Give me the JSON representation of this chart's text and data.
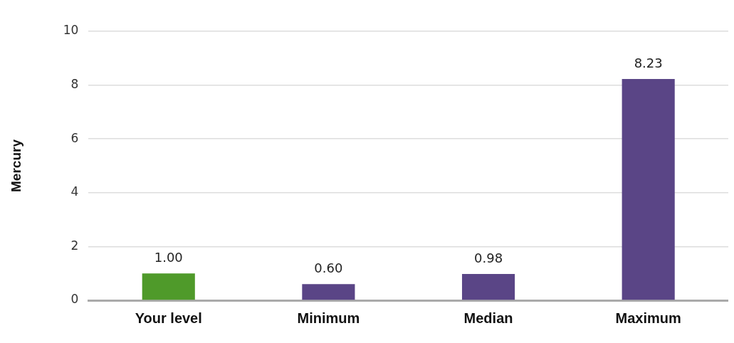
{
  "chart_data": {
    "type": "bar",
    "ylabel": "Mercury",
    "categories": [
      "Your level",
      "Minimum",
      "Median",
      "Maximum"
    ],
    "values": [
      1.0,
      0.6,
      0.98,
      8.23
    ],
    "colors": [
      "#4f9a2a",
      "#5a4586",
      "#5a4586",
      "#5a4586"
    ],
    "value_labels": [
      "1.00",
      "0.60",
      "0.98",
      "8.23"
    ],
    "ylim": [
      0,
      10
    ],
    "yticks": [
      0,
      2,
      4,
      6,
      8,
      10
    ],
    "grid": "y",
    "legend": false
  }
}
